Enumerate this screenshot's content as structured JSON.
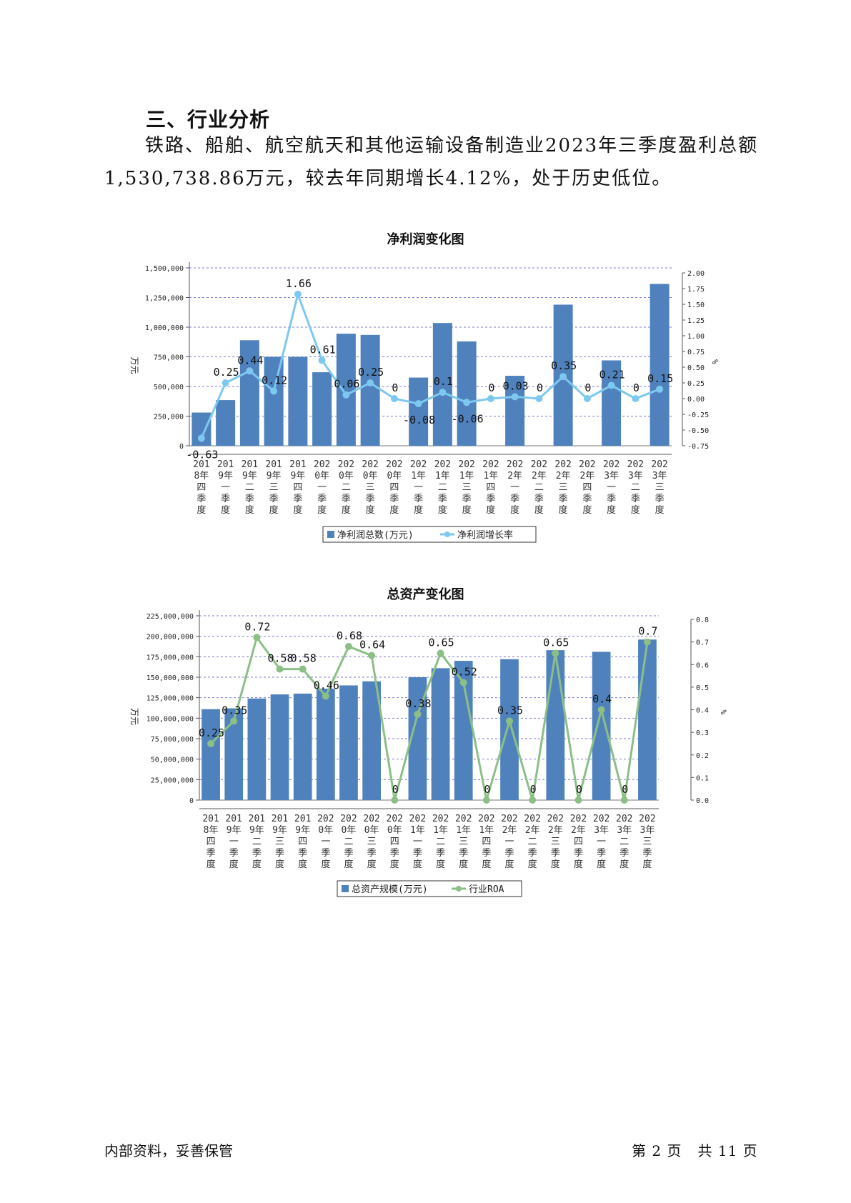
{
  "section_heading": "三、行业分析",
  "paragraph": {
    "line1": "铁路、船舶、航空航天和其他运输设备制造业2023年三季度盈利总额",
    "line2": "1,530,738.86万元，较去年同期增长4.12%，处于历史低位。"
  },
  "charts": {
    "profit": {
      "title": "净利润变化图",
      "legend_bar": "净利润总数(万元)",
      "legend_line": "净利润增长率",
      "ylabel_left": "万元",
      "ylabel_right": "%"
    },
    "assets": {
      "title": "总资产变化图",
      "legend_bar": "总资产规模(万元)",
      "legend_line": "行业ROA",
      "ylabel_left": "万元",
      "ylabel_right": "%"
    }
  },
  "chart_data": [
    {
      "type": "bar+line",
      "title": "净利润变化图",
      "categories": [
        "2018年四季度",
        "2019年一季度",
        "2019年二季度",
        "2019年三季度",
        "2019年四季度",
        "2020年一季度",
        "2020年二季度",
        "2020年三季度",
        "2020年四季度",
        "2021年一季度",
        "2021年二季度",
        "2021年三季度",
        "2021年四季度",
        "2022年一季度",
        "2022年二季度",
        "2022年三季度",
        "2022年四季度",
        "2023年一季度",
        "2023年二季度",
        "2023年三季度"
      ],
      "series": [
        {
          "name": "净利润总数(万元)",
          "type": "bar",
          "color": "#4f81bd",
          "values": [
            280000,
            385000,
            890000,
            750000,
            750000,
            620000,
            945000,
            935000,
            0,
            575000,
            1035000,
            880000,
            0,
            590000,
            0,
            1190000,
            0,
            720000,
            0,
            1365000
          ]
        },
        {
          "name": "净利润增长率",
          "type": "line",
          "color": "#7dc8ef",
          "values": [
            -0.63,
            0.25,
            0.44,
            0.12,
            1.66,
            0.61,
            0.06,
            0.25,
            0,
            -0.08,
            0.1,
            -0.06,
            0,
            0.03,
            0,
            0.35,
            0,
            0.21,
            0,
            0.15
          ]
        }
      ],
      "ylabel": "万元",
      "y2label": "%",
      "ylim": [
        0,
        1500000
      ],
      "y_ticks": [
        "0",
        "250,000",
        "500,000",
        "750,000",
        "1,000,000",
        "1,250,000",
        "1,500,000"
      ],
      "y2lim": [
        -0.75,
        2.0
      ],
      "y2_ticks": [
        "-0.75",
        "-0.50",
        "-0.25",
        "0.00",
        "0.25",
        "0.50",
        "0.75",
        "1.00",
        "1.25",
        "1.50",
        "1.75",
        "2.00"
      ],
      "grid": true,
      "legend": "bottom"
    },
    {
      "type": "bar+line",
      "title": "总资产变化图",
      "categories": [
        "2018年四季度",
        "2019年一季度",
        "2019年二季度",
        "2019年三季度",
        "2019年四季度",
        "2020年一季度",
        "2020年二季度",
        "2020年三季度",
        "2020年四季度",
        "2021年一季度",
        "2021年二季度",
        "2021年三季度",
        "2021年四季度",
        "2022年一季度",
        "2022年二季度",
        "2022年三季度",
        "2022年四季度",
        "2023年一季度",
        "2023年二季度",
        "2023年三季度"
      ],
      "series": [
        {
          "name": "总资产规模(万元)",
          "type": "bar",
          "color": "#4f81bd",
          "values": [
            111000000,
            112000000,
            124000000,
            129000000,
            130000000,
            136000000,
            140000000,
            145000000,
            0,
            150000000,
            161000000,
            170000000,
            0,
            172000000,
            0,
            183000000,
            0,
            181000000,
            0,
            196000000
          ]
        },
        {
          "name": "行业ROA",
          "type": "line",
          "color": "#8cbf86",
          "values": [
            0.25,
            0.35,
            0.72,
            0.58,
            0.58,
            0.46,
            0.68,
            0.64,
            0,
            0.38,
            0.65,
            0.52,
            0,
            0.35,
            0,
            0.65,
            0,
            0.4,
            0,
            0.7
          ]
        }
      ],
      "ylabel": "万元",
      "y2label": "%",
      "ylim": [
        0,
        225000000
      ],
      "y_ticks": [
        "0",
        "25,000,000",
        "50,000,000",
        "75,000,000",
        "100,000,000",
        "125,000,000",
        "150,000,000",
        "175,000,000",
        "200,000,000",
        "225,000,000"
      ],
      "y2lim": [
        0,
        0.8
      ],
      "y2_ticks": [
        "0.0",
        "0.1",
        "0.2",
        "0.3",
        "0.4",
        "0.5",
        "0.6",
        "0.7",
        "0.8"
      ],
      "grid": true,
      "legend": "bottom"
    }
  ],
  "footer": {
    "left": "内部资料，妥善保管",
    "right": "第 2 页   共 11 页"
  }
}
